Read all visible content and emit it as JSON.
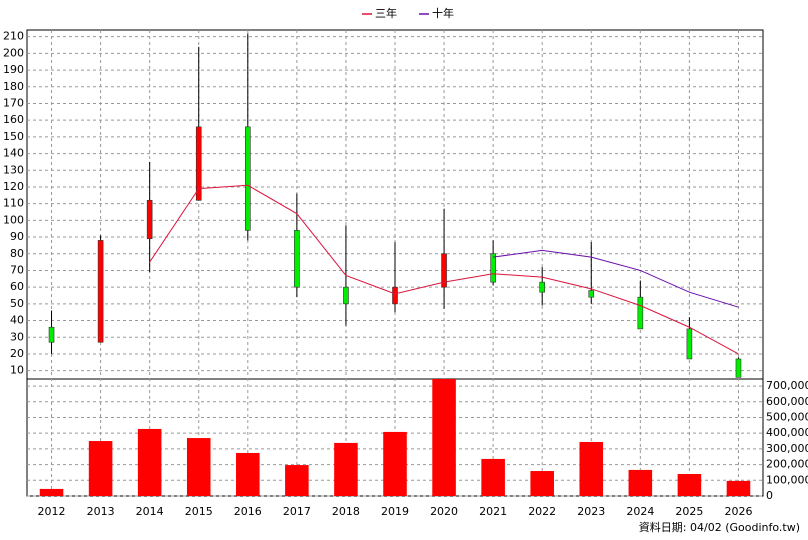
{
  "chart_data": {
    "type": "candlestick",
    "categories": [
      "2012",
      "2013",
      "2014",
      "2015",
      "2016",
      "2017",
      "2018",
      "2019",
      "2020",
      "2021",
      "2022",
      "2023",
      "2024",
      "2025",
      "2026"
    ],
    "open": [
      36,
      27,
      89,
      112,
      156,
      94,
      60,
      50,
      60,
      80,
      63,
      58,
      54,
      35,
      17
    ],
    "high": [
      46,
      91,
      135,
      204,
      212,
      116,
      97,
      87,
      107,
      88,
      72,
      87,
      64,
      42,
      18
    ],
    "low": [
      20,
      27,
      69,
      112,
      88,
      54,
      37,
      45,
      47,
      61,
      49,
      50,
      35,
      17,
      6
    ],
    "close": [
      27,
      88,
      112,
      156,
      94,
      60,
      50,
      60,
      80,
      63,
      57,
      54,
      35,
      17,
      6
    ],
    "up_color": "#ff0000",
    "down_color": "#00ee00",
    "series": [
      {
        "name": "三年",
        "color": "#dc143c",
        "values": [
          null,
          null,
          75,
          119,
          121,
          104,
          67,
          56,
          63,
          68,
          66,
          59,
          49,
          36,
          20
        ]
      },
      {
        "name": "十年",
        "color": "#6a0dad",
        "values": [
          null,
          null,
          null,
          null,
          null,
          null,
          null,
          null,
          null,
          78,
          82,
          78,
          70,
          57,
          48
        ]
      }
    ],
    "volume": {
      "color": "#ff0000",
      "axis": "y2",
      "values": [
        45000,
        350000,
        427000,
        369000,
        274000,
        197000,
        338000,
        408000,
        745000,
        236000,
        159000,
        344000,
        166000,
        140000,
        96000
      ]
    },
    "ylim": [
      5,
      214
    ],
    "yticks": [
      10,
      20,
      30,
      40,
      50,
      60,
      70,
      80,
      90,
      100,
      110,
      120,
      130,
      140,
      150,
      160,
      170,
      180,
      190,
      200,
      210
    ],
    "y2lim": [
      0,
      745000
    ],
    "y2ticks": [
      0,
      {
        "value": 100000,
        "label": "100,000"
      },
      {
        "value": 200000,
        "label": "200,000"
      },
      {
        "value": 300000,
        "label": "300,000"
      },
      {
        "value": 400000,
        "label": "400,000"
      },
      {
        "value": 500000,
        "label": "500,000"
      },
      {
        "value": 600000,
        "label": "600,000"
      },
      {
        "value": 700000,
        "label": "700,000"
      }
    ],
    "grid": true,
    "footer": "資料日期: 04/02 (Goodinfo.tw)"
  }
}
